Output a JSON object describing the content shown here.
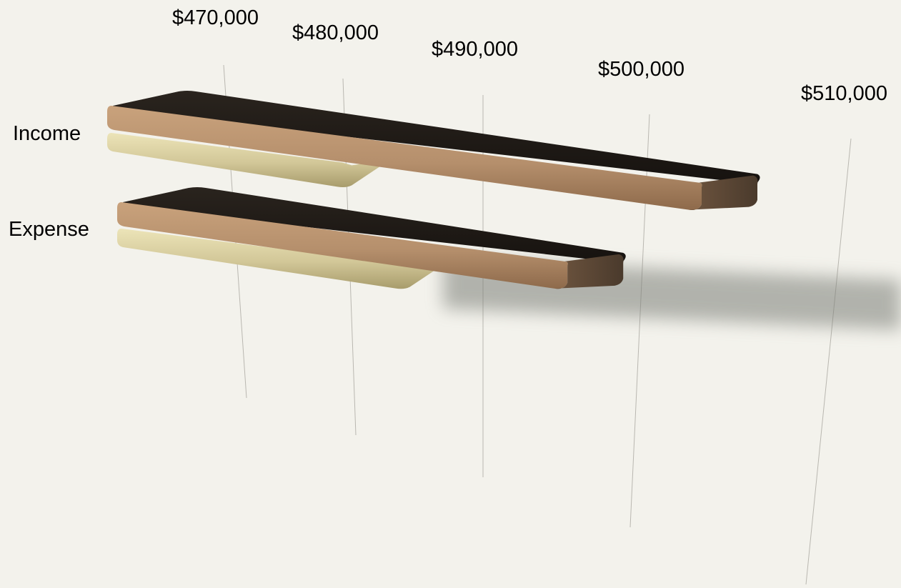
{
  "chart_data": {
    "type": "bar",
    "orientation": "horizontal",
    "style": "3d",
    "categories": [
      "Income",
      "Expense"
    ],
    "series": [
      {
        "values": [
          479000,
          482000
        ],
        "color": "#cfc596"
      },
      {
        "values": [
          504500,
          495500
        ],
        "color": "#b58f6c"
      }
    ],
    "x_ticks": [
      "$470,000",
      "$480,000",
      "$490,000",
      "$500,000",
      "$510,000"
    ],
    "x_tick_values": [
      470000,
      480000,
      490000,
      500000,
      510000
    ],
    "xlim": [
      464000,
      512000
    ],
    "grid": true,
    "legend": "none",
    "background_color": "#f3f2ec",
    "top_face_color": "#1e1a16"
  }
}
